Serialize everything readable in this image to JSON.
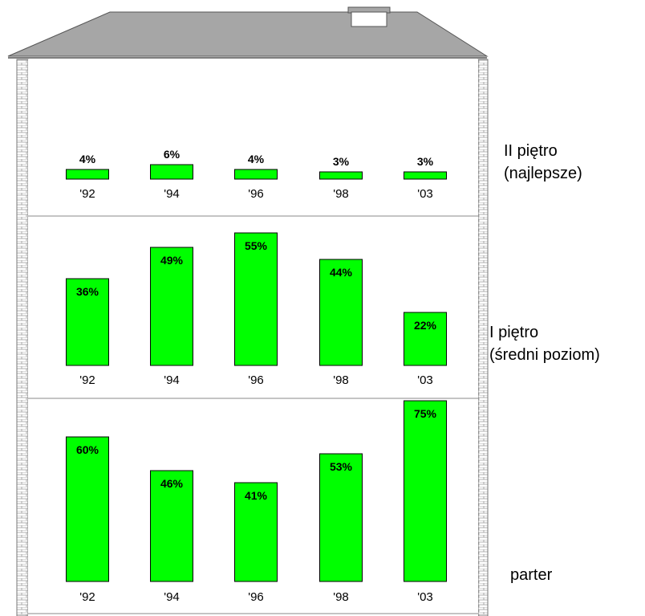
{
  "chart_data": {
    "type": "bar",
    "categories": [
      "'92",
      "'94",
      "'96",
      "'98",
      "'03"
    ],
    "ylim": [
      0,
      100
    ],
    "floors": [
      {
        "name_lines": [
          "II piętro",
          "(najlepsze)"
        ],
        "values": [
          4,
          6,
          4,
          3,
          3
        ],
        "labels": [
          "4%",
          "6%",
          "4%",
          "3%",
          "3%"
        ]
      },
      {
        "name_lines": [
          "I piętro",
          "(średni poziom)"
        ],
        "values": [
          36,
          49,
          55,
          44,
          22
        ],
        "labels": [
          "36%",
          "49%",
          "55%",
          "44%",
          "22%"
        ]
      },
      {
        "name_lines": [
          "parter"
        ],
        "values": [
          60,
          46,
          41,
          53,
          75
        ],
        "labels": [
          "60%",
          "46%",
          "41%",
          "53%",
          "75%"
        ]
      }
    ]
  },
  "colors": {
    "bar": "#00ff00",
    "roof": "#a6a6a6",
    "wall": "#ffffff",
    "brick": "#bfbfbf"
  }
}
